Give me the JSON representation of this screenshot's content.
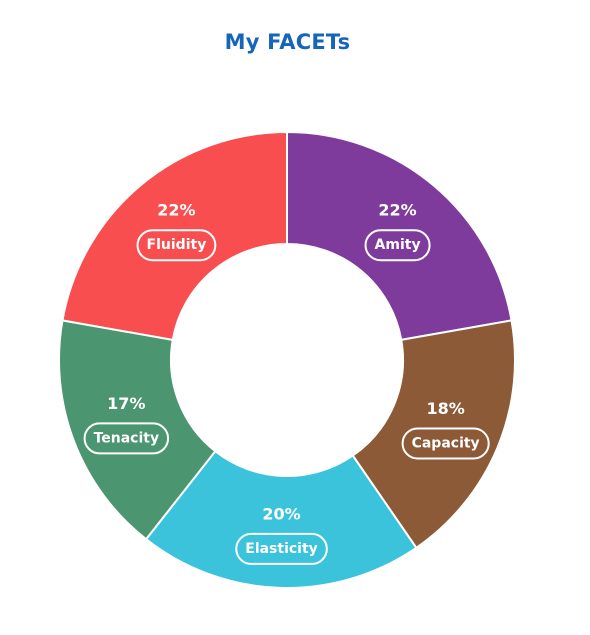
{
  "chart_data": {
    "type": "pie",
    "donut": true,
    "title": "My FACETs",
    "slices": [
      {
        "name": "Amity",
        "value": 22,
        "label": "22%",
        "color": "#7f3b9b"
      },
      {
        "name": "Capacity",
        "value": 18,
        "label": "18%",
        "color": "#8c5a37"
      },
      {
        "name": "Elasticity",
        "value": 20,
        "label": "20%",
        "color": "#3bc3dc"
      },
      {
        "name": "Tenacity",
        "value": 17,
        "label": "17%",
        "color": "#4b9570"
      },
      {
        "name": "Fluidity",
        "value": 22,
        "label": "22%",
        "color": "#f84e50"
      }
    ]
  }
}
